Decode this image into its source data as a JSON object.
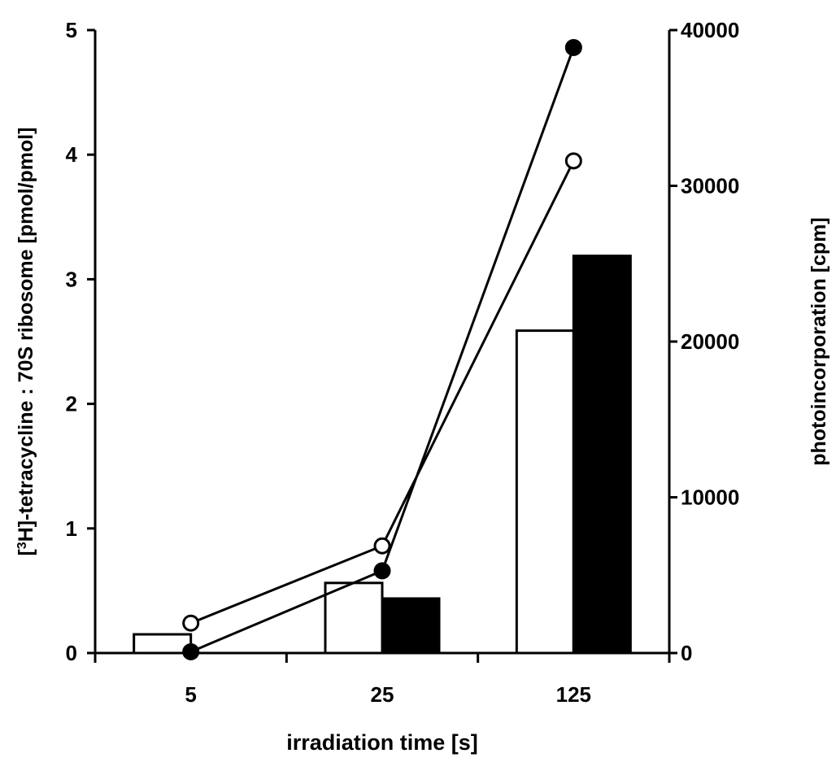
{
  "chart_data": {
    "type": "bar",
    "categories": [
      "5",
      "25",
      "125"
    ],
    "xlabel": "irradiation time [s]",
    "ylabel_left": {
      "prefix": "[",
      "superscript": "3",
      "suffix": "H]-tetracycline : 70S ribosome [pmol/pmol]"
    },
    "ylabel_right": "photoincorporation [cpm]",
    "ylim_left": [
      0,
      5
    ],
    "ylim_right": [
      0,
      40000
    ],
    "yticks_left": [
      "0",
      "1",
      "2",
      "3",
      "4",
      "5"
    ],
    "yticks_right": [
      "0",
      "10000",
      "20000",
      "30000",
      "40000"
    ],
    "bar_series": [
      {
        "fill": "#ffffff",
        "axis": "right",
        "values": [
          1200,
          4500,
          20700
        ]
      },
      {
        "fill": "#000000",
        "axis": "right",
        "values": [
          0,
          3500,
          25500
        ]
      }
    ],
    "line_series": [
      {
        "marker": "open-circle",
        "axis": "left",
        "values": [
          0.24,
          0.86,
          3.95
        ]
      },
      {
        "marker": "filled-circle",
        "axis": "left",
        "values": [
          0.01,
          0.66,
          4.86
        ]
      }
    ],
    "grid": false,
    "legend": "none"
  }
}
